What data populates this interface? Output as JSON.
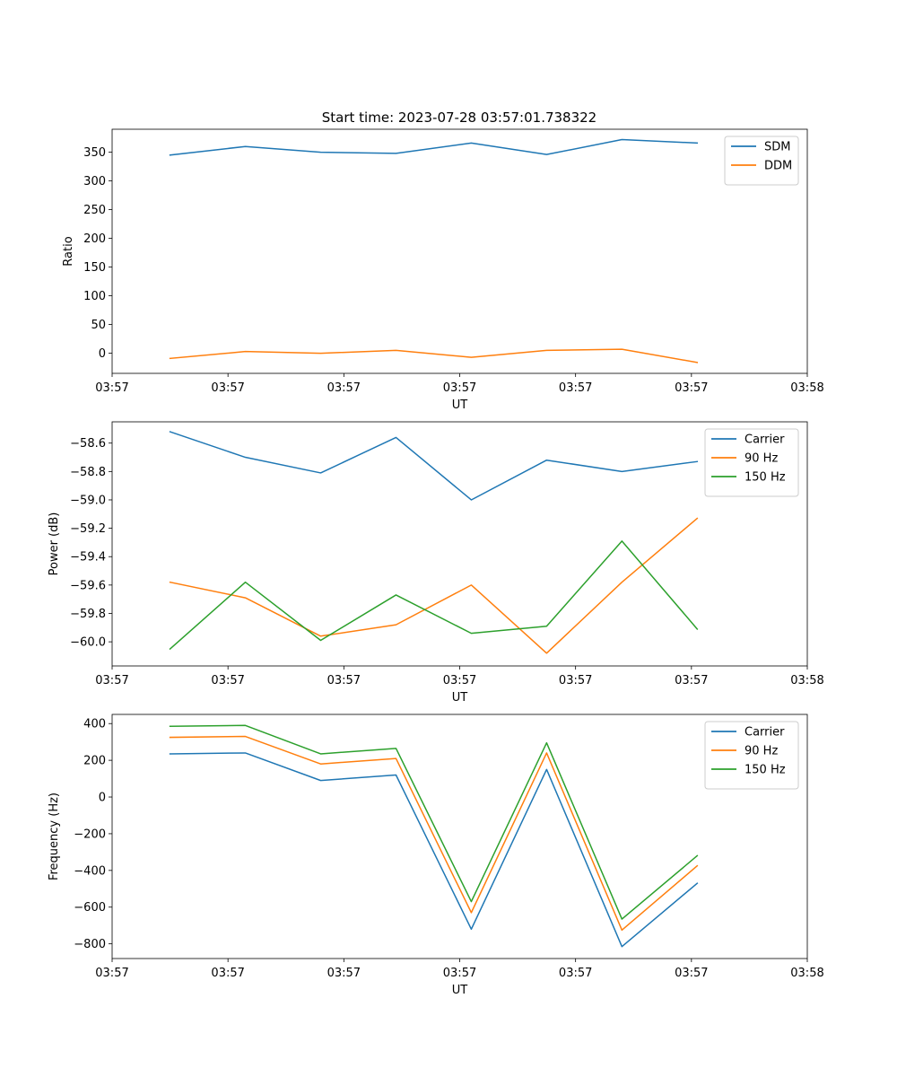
{
  "figure_title": "Start time: 2023-07-28 03:57:01.738322",
  "chart_data": [
    {
      "type": "line",
      "title": "Start time: 2023-07-28 03:57:01.738322",
      "xlabel": "UT",
      "ylabel": "Ratio",
      "xlim": [
        0,
        6
      ],
      "ylim": [
        -35,
        390
      ],
      "x": [
        0.5,
        1.15,
        1.8,
        2.45,
        3.1,
        3.75,
        4.4,
        5.05
      ],
      "x_ticks": [
        0,
        1,
        2,
        3,
        4,
        5,
        6
      ],
      "x_tick_labels": [
        "03:57",
        "03:57",
        "03:57",
        "03:57",
        "03:57",
        "03:57",
        "03:58"
      ],
      "y_ticks": [
        0,
        50,
        100,
        150,
        200,
        250,
        300,
        350
      ],
      "y_tick_labels": [
        "0",
        "50",
        "100",
        "150",
        "200",
        "250",
        "300",
        "350"
      ],
      "legend_position": "top-right",
      "series": [
        {
          "name": "SDM",
          "color": "#1f77b4",
          "values": [
            345,
            360,
            350,
            348,
            366,
            346,
            372,
            366
          ]
        },
        {
          "name": "DDM",
          "color": "#ff7f0e",
          "values": [
            -9,
            3,
            0,
            5,
            -7,
            5,
            7,
            -16
          ]
        }
      ]
    },
    {
      "type": "line",
      "xlabel": "UT",
      "ylabel": "Power (dB)",
      "xlim": [
        0,
        6
      ],
      "ylim": [
        -60.17,
        -58.45
      ],
      "x": [
        0.5,
        1.15,
        1.8,
        2.45,
        3.1,
        3.75,
        4.4,
        5.05
      ],
      "x_ticks": [
        0,
        1,
        2,
        3,
        4,
        5,
        6
      ],
      "x_tick_labels": [
        "03:57",
        "03:57",
        "03:57",
        "03:57",
        "03:57",
        "03:57",
        "03:58"
      ],
      "y_ticks": [
        -58.6,
        -58.8,
        -59.0,
        -59.2,
        -59.4,
        -59.6,
        -59.8,
        -60.0
      ],
      "y_tick_labels": [
        "−58.6",
        "−58.8",
        "−59.0",
        "−59.2",
        "−59.4",
        "−59.6",
        "−59.8",
        "−60.0"
      ],
      "legend_position": "top-right",
      "series": [
        {
          "name": "Carrier",
          "color": "#1f77b4",
          "values": [
            -58.52,
            -58.7,
            -58.81,
            -58.56,
            -59.0,
            -58.72,
            -58.8,
            -58.73
          ]
        },
        {
          "name": "90 Hz",
          "color": "#ff7f0e",
          "values": [
            -59.58,
            -59.69,
            -59.96,
            -59.88,
            -59.6,
            -60.08,
            -59.58,
            -59.13
          ]
        },
        {
          "name": "150 Hz",
          "color": "#2ca02c",
          "values": [
            -60.05,
            -59.58,
            -59.99,
            -59.67,
            -59.94,
            -59.89,
            -59.29,
            -59.91
          ]
        }
      ]
    },
    {
      "type": "line",
      "xlabel": "UT",
      "ylabel": "Frequency (Hz)",
      "xlim": [
        0,
        6
      ],
      "ylim": [
        -880,
        450
      ],
      "x": [
        0.5,
        1.15,
        1.8,
        2.45,
        3.1,
        3.75,
        4.4,
        5.05
      ],
      "x_ticks": [
        0,
        1,
        2,
        3,
        4,
        5,
        6
      ],
      "x_tick_labels": [
        "03:57",
        "03:57",
        "03:57",
        "03:57",
        "03:57",
        "03:57",
        "03:58"
      ],
      "y_ticks": [
        400,
        200,
        0,
        -200,
        -400,
        -600,
        -800
      ],
      "y_tick_labels": [
        "400",
        "200",
        "0",
        "−200",
        "−400",
        "−600",
        "−800"
      ],
      "legend_position": "top-right",
      "series": [
        {
          "name": "Carrier",
          "color": "#1f77b4",
          "values": [
            235,
            240,
            90,
            120,
            -720,
            150,
            -815,
            -470
          ]
        },
        {
          "name": "90 Hz",
          "color": "#ff7f0e",
          "values": [
            325,
            330,
            180,
            210,
            -630,
            240,
            -725,
            -375
          ]
        },
        {
          "name": "150 Hz",
          "color": "#2ca02c",
          "values": [
            385,
            390,
            235,
            265,
            -570,
            295,
            -665,
            -320
          ]
        }
      ]
    }
  ]
}
